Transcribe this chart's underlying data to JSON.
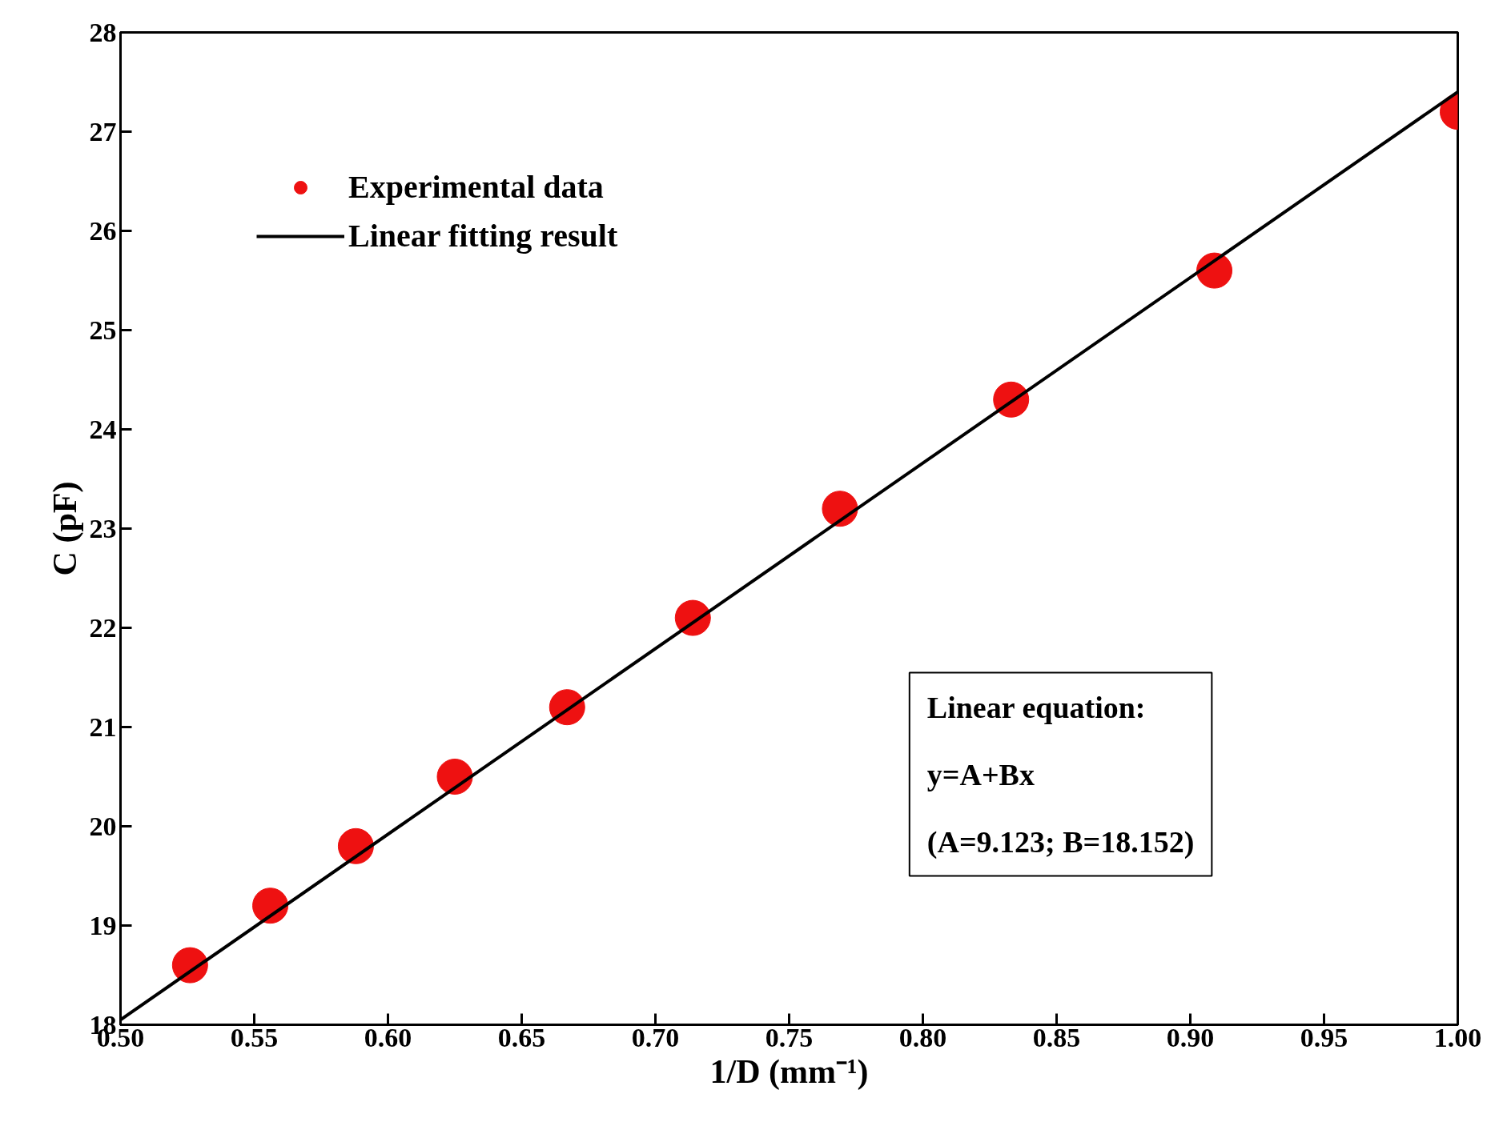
{
  "chart_data": {
    "type": "scatter",
    "xlabel": "1/D (mm⁻¹)",
    "ylabel": "C (pF)",
    "series": [
      {
        "name": "Experimental data",
        "color": "#ee1111",
        "marker": "circle",
        "x": [
          0.526,
          0.556,
          0.588,
          0.625,
          0.667,
          0.714,
          0.769,
          0.833,
          0.909,
          1.0
        ],
        "values": [
          18.6,
          19.2,
          19.8,
          20.5,
          21.2,
          22.1,
          23.2,
          24.3,
          25.6,
          27.2
        ]
      },
      {
        "name": "Linear fitting result",
        "type": "line",
        "color": "#000000",
        "line_style": "solid",
        "x": [
          0.5,
          1.0
        ],
        "values": [
          18.05,
          27.4
        ]
      }
    ],
    "xlim": [
      0.5,
      1.0
    ],
    "xticks": [
      {
        "value": 0.5,
        "label": "0.50"
      },
      {
        "value": 0.55,
        "label": "0.55"
      },
      {
        "value": 0.6,
        "label": "0.60"
      },
      {
        "value": 0.65,
        "label": "0.65"
      },
      {
        "value": 0.7,
        "label": "0.70"
      },
      {
        "value": 0.75,
        "label": "0.75"
      },
      {
        "value": 0.8,
        "label": "0.80"
      },
      {
        "value": 0.85,
        "label": "0.85"
      },
      {
        "value": 0.9,
        "label": "0.90"
      },
      {
        "value": 0.95,
        "label": "0.95"
      },
      {
        "value": 1.0,
        "label": "1.00"
      }
    ],
    "ylim": [
      18,
      28
    ],
    "yticks": [
      18,
      19,
      20,
      21,
      22,
      23,
      24,
      25,
      26,
      27,
      28
    ],
    "grid": false,
    "legend": "top left",
    "annotations": [
      "Linear equation:",
      "y=A+Bx",
      "(A=9.123; B=18.152)"
    ]
  }
}
